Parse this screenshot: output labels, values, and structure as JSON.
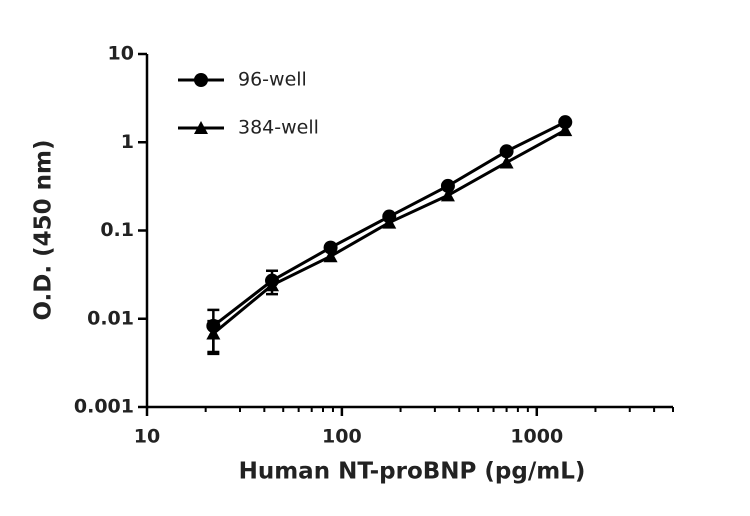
{
  "chart_data": {
    "type": "line",
    "x_label": "Human NT-proBNP (pg/mL)",
    "y_label": "O.D. (450 nm)",
    "x": [
      21.9,
      43.8,
      87.5,
      175,
      350,
      700,
      1400
    ],
    "series": [
      {
        "name": "96-well",
        "color": "#000000",
        "marker": "circle",
        "values": [
          0.0083,
          0.027,
          0.064,
          0.144,
          0.32,
          0.79,
          1.69
        ],
        "errors": [
          0.0043,
          0.008,
          null,
          null,
          null,
          null,
          null
        ]
      },
      {
        "name": "384-well",
        "color": "#000000",
        "marker": "triangle",
        "values": [
          0.0068,
          0.024,
          0.051,
          0.123,
          0.25,
          0.59,
          1.37
        ],
        "errors": [
          0.0026,
          null,
          null,
          null,
          null,
          null,
          null
        ]
      }
    ],
    "x_scale": "log",
    "y_scale": "log",
    "xlim": [
      10,
      5000
    ],
    "ylim": [
      0.001,
      10
    ],
    "xticks": [
      10,
      100,
      1000
    ],
    "xticks_minor": [
      20,
      30,
      40,
      50,
      60,
      70,
      80,
      90,
      200,
      300,
      400,
      500,
      600,
      700,
      800,
      900,
      2000,
      3000,
      4000,
      5000
    ],
    "yticks": [
      0.001,
      0.01,
      0.1,
      1,
      10
    ],
    "grid": false,
    "legend": "upper left"
  }
}
